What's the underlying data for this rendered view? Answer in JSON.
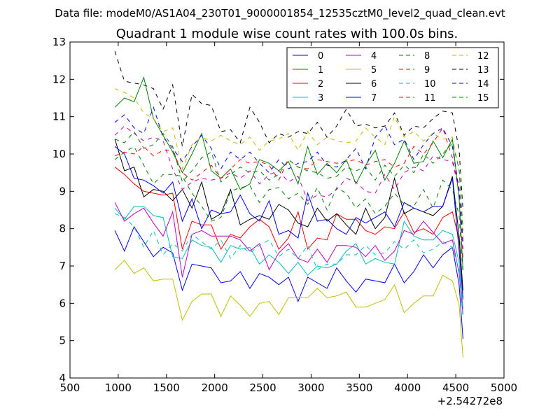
{
  "chart_data": {
    "type": "line",
    "suptitle": "Data file: modeM0/AS1A04_230T01_9000001854_12535cztM0_level2_quad_clean.evt",
    "title": "Quadrant 1 module wise count rates with 100.0s bins.",
    "xlabel": "",
    "ylabel": "",
    "xlim": [
      500,
      5000
    ],
    "ylim": [
      4,
      13
    ],
    "x_ticks": [
      500,
      1000,
      1500,
      2000,
      2500,
      3000,
      3500,
      4000,
      4500,
      5000
    ],
    "y_ticks": [
      4,
      5,
      6,
      7,
      8,
      9,
      10,
      11,
      12,
      13
    ],
    "x_offset_label": "+2.54272e8",
    "grid": false,
    "legend_position": "top-right",
    "x": [
      965,
      1065,
      1165,
      1265,
      1365,
      1465,
      1565,
      1665,
      1765,
      1865,
      1965,
      2065,
      2165,
      2265,
      2365,
      2465,
      2565,
      2665,
      2765,
      2865,
      2965,
      3065,
      3165,
      3265,
      3365,
      3465,
      3565,
      3665,
      3765,
      3865,
      3965,
      4065,
      4165,
      4265,
      4365,
      4465,
      4535,
      4575
    ],
    "series": [
      {
        "name": "0",
        "color": "#0000ff",
        "dash": "solid",
        "values": [
          7.95,
          7.4,
          8.05,
          7.65,
          7.25,
          7.5,
          7.35,
          6.35,
          7.05,
          7.0,
          6.95,
          6.55,
          6.6,
          6.85,
          6.4,
          6.8,
          6.7,
          6.5,
          6.7,
          6.05,
          6.7,
          6.55,
          6.4,
          6.95,
          6.6,
          6.3,
          6.65,
          6.6,
          6.55,
          7.05,
          6.55,
          6.85,
          7.3,
          6.95,
          7.3,
          7.5,
          6.5,
          5.05
        ]
      },
      {
        "name": "1",
        "color": "#008000",
        "dash": "solid",
        "values": [
          11.25,
          11.5,
          11.4,
          12.05,
          10.95,
          10.5,
          10.05,
          9.5,
          10.0,
          10.55,
          9.55,
          9.35,
          9.6,
          9.05,
          9.2,
          9.85,
          9.75,
          9.55,
          9.8,
          9.2,
          10.2,
          9.45,
          9.75,
          9.5,
          9.85,
          9.2,
          9.7,
          10.1,
          9.3,
          9.75,
          10.35,
          9.75,
          9.8,
          10.35,
          9.9,
          10.4,
          8.8,
          6.9
        ]
      },
      {
        "name": "2",
        "color": "#ff0000",
        "dash": "solid",
        "values": [
          9.65,
          9.45,
          9.2,
          9.0,
          8.95,
          8.9,
          8.95,
          7.45,
          8.2,
          8.1,
          8.1,
          7.45,
          7.85,
          7.75,
          8.05,
          8.25,
          8.05,
          7.45,
          7.75,
          8.45,
          7.45,
          7.75,
          7.7,
          8.4,
          8.25,
          8.25,
          7.95,
          7.85,
          8.05,
          8.0,
          8.45,
          7.9,
          8.0,
          7.85,
          8.3,
          8.45,
          7.7,
          6.1
        ]
      },
      {
        "name": "3",
        "color": "#00bfbf",
        "dash": "solid",
        "values": [
          8.55,
          8.25,
          8.6,
          8.6,
          8.35,
          8.3,
          7.25,
          7.2,
          7.7,
          7.55,
          7.5,
          7.1,
          7.55,
          7.45,
          7.5,
          7.05,
          7.3,
          7.1,
          6.8,
          7.1,
          6.75,
          7.0,
          6.95,
          7.05,
          7.4,
          7.6,
          7.05,
          7.2,
          7.1,
          7.05,
          8.2,
          7.8,
          7.7,
          7.7,
          7.95,
          7.85,
          7.1,
          5.85
        ]
      },
      {
        "name": "4",
        "color": "#bf00bf",
        "dash": "solid",
        "values": [
          8.7,
          8.2,
          8.4,
          8.55,
          8.15,
          7.8,
          8.45,
          6.7,
          7.85,
          7.95,
          7.8,
          7.8,
          7.8,
          7.7,
          7.4,
          7.6,
          6.9,
          7.35,
          7.6,
          7.2,
          7.1,
          7.45,
          7.1,
          7.55,
          7.55,
          7.5,
          7.25,
          7.55,
          7.15,
          7.4,
          7.95,
          7.85,
          8.2,
          7.9,
          7.6,
          7.7,
          6.8,
          5.7
        ]
      },
      {
        "name": "5",
        "color": "#bfbf00",
        "dash": "solid",
        "values": [
          6.9,
          7.15,
          6.8,
          6.95,
          6.6,
          6.65,
          6.65,
          5.55,
          6.05,
          6.25,
          6.25,
          5.65,
          6.2,
          5.95,
          5.65,
          6.0,
          6.05,
          5.7,
          6.15,
          6.15,
          6.15,
          6.4,
          6.15,
          6.2,
          6.3,
          5.9,
          5.9,
          6.0,
          6.1,
          6.5,
          5.75,
          6.0,
          6.2,
          6.2,
          6.75,
          6.6,
          5.95,
          4.55
        ]
      },
      {
        "name": "6",
        "color": "#000000",
        "dash": "solid",
        "values": [
          10.4,
          9.55,
          9.65,
          8.85,
          9.05,
          9.0,
          8.75,
          9.05,
          8.55,
          9.25,
          8.25,
          8.4,
          9.05,
          8.1,
          8.25,
          8.35,
          8.25,
          8.65,
          8.5,
          8.15,
          8.05,
          8.55,
          8.2,
          8.4,
          8.1,
          7.85,
          8.55,
          8.0,
          8.3,
          9.35,
          8.4,
          8.55,
          8.45,
          8.35,
          8.6,
          9.4,
          7.8,
          6.35
        ]
      },
      {
        "name": "7",
        "color": "#0000ff",
        "dash": "solid",
        "values": [
          10.2,
          10.0,
          9.35,
          9.3,
          9.15,
          8.95,
          9.25,
          8.2,
          8.8,
          8.0,
          8.5,
          8.4,
          8.45,
          8.9,
          8.4,
          8.2,
          8.75,
          7.85,
          7.95,
          7.75,
          8.95,
          8.2,
          8.25,
          8.0,
          7.85,
          8.3,
          8.15,
          8.3,
          8.45,
          8.05,
          8.7,
          8.55,
          8.45,
          8.6,
          8.6,
          9.35,
          7.4,
          6.15
        ]
      },
      {
        "name": "8",
        "color": "#008000",
        "dash": "dashed",
        "values": [
          9.85,
          10.05,
          10.2,
          9.7,
          9.2,
          9.45,
          9.45,
          9.4,
          8.95,
          8.6,
          8.2,
          8.3,
          9.0,
          9.1,
          9.15,
          8.7,
          9.05,
          9.1,
          8.8,
          8.95,
          8.65,
          9.1,
          8.5,
          9.1,
          8.95,
          8.55,
          8.8,
          8.4,
          8.6,
          8.95,
          8.65,
          8.6,
          9.05,
          8.55,
          9.3,
          9.05,
          8.35,
          6.8
        ]
      },
      {
        "name": "9",
        "color": "#ff0000",
        "dash": "dashed",
        "values": [
          9.95,
          10.05,
          10.0,
          10.2,
          9.95,
          10.1,
          10.1,
          9.5,
          9.3,
          9.5,
          9.7,
          9.35,
          9.6,
          9.85,
          9.75,
          9.8,
          9.7,
          9.3,
          9.85,
          9.65,
          9.6,
          9.85,
          9.8,
          9.75,
          9.8,
          9.85,
          9.7,
          9.8,
          9.85,
          9.65,
          9.75,
          10.2,
          10.0,
          10.3,
          10.7,
          9.9,
          9.05,
          7.45
        ]
      },
      {
        "name": "10",
        "color": "#00bfbf",
        "dash": "dashed",
        "values": [
          8.4,
          8.3,
          8.05,
          7.5,
          7.95,
          7.3,
          7.6,
          7.4,
          7.85,
          7.65,
          7.45,
          7.7,
          7.2,
          7.55,
          7.35,
          7.55,
          7.7,
          7.25,
          7.45,
          7.2,
          7.55,
          6.9,
          7.05,
          7.05,
          7.3,
          7.3,
          7.55,
          7.3,
          7.35,
          7.65,
          7.45,
          7.7,
          7.35,
          7.45,
          7.65,
          7.5,
          6.9,
          5.6
        ]
      },
      {
        "name": "11",
        "color": "#bf00bf",
        "dash": "dashed",
        "values": [
          10.5,
          10.75,
          10.55,
          10.35,
          10.45,
          10.35,
          9.6,
          9.05,
          9.25,
          9.35,
          9.3,
          9.35,
          9.5,
          9.35,
          9.55,
          9.2,
          9.45,
          9.55,
          9.25,
          9.4,
          8.75,
          8.9,
          8.85,
          9.05,
          9.35,
          9.25,
          9.0,
          8.95,
          9.45,
          9.05,
          9.5,
          9.65,
          9.55,
          9.95,
          9.85,
          9.8,
          9.0,
          7.2
        ]
      },
      {
        "name": "12",
        "color": "#bfbf00",
        "dash": "dashed",
        "values": [
          11.75,
          11.65,
          11.5,
          11.1,
          10.95,
          10.6,
          10.7,
          9.6,
          10.25,
          10.45,
          10.35,
          10.5,
          10.35,
          10.25,
          10.45,
          10.1,
          10.35,
          10.4,
          10.55,
          10.1,
          10.6,
          10.25,
          10.45,
          10.35,
          10.3,
          10.35,
          10.7,
          10.45,
          10.25,
          11.0,
          10.45,
          10.6,
          10.35,
          10.55,
          10.4,
          10.45,
          9.55,
          7.7
        ]
      },
      {
        "name": "13",
        "color": "#000000",
        "dash": "dashed",
        "values": [
          12.75,
          11.95,
          11.9,
          11.85,
          11.75,
          11.2,
          11.85,
          10.2,
          11.6,
          11.35,
          11.3,
          10.6,
          10.65,
          10.3,
          11.25,
          10.85,
          10.3,
          10.55,
          10.45,
          10.6,
          10.55,
          10.85,
          10.45,
          10.75,
          11.2,
          10.75,
          10.8,
          10.7,
          10.75,
          11.1,
          10.5,
          10.75,
          10.7,
          10.95,
          11.15,
          11.1,
          10.1,
          8.5
        ]
      },
      {
        "name": "14",
        "color": "#0000ff",
        "dash": "dashed",
        "values": [
          10.85,
          11.05,
          10.7,
          10.55,
          11.25,
          10.45,
          10.15,
          9.8,
          10.2,
          10.5,
          10.15,
          9.6,
          10.05,
          9.85,
          10.05,
          9.75,
          9.5,
          9.85,
          9.6,
          9.75,
          9.8,
          10.05,
          9.7,
          9.65,
          9.85,
          10.15,
          9.6,
          10.45,
          10.75,
          10.25,
          10.4,
          9.85,
          10.25,
          10.55,
          10.7,
          10.2,
          9.05,
          7.65
        ]
      },
      {
        "name": "15",
        "color": "#008000",
        "dash": "dashed",
        "values": [
          10.4,
          10.3,
          10.6,
          10.15,
          10.25,
          10.55,
          10.2,
          9.25,
          9.55,
          9.9,
          10.05,
          9.25,
          9.45,
          9.65,
          9.5,
          9.55,
          9.3,
          9.45,
          9.85,
          9.65,
          9.55,
          9.5,
          9.35,
          9.4,
          9.65,
          9.55,
          9.65,
          9.3,
          9.7,
          9.4,
          9.7,
          9.5,
          10.0,
          9.75,
          10.0,
          10.3,
          9.6,
          7.95
        ]
      }
    ]
  }
}
